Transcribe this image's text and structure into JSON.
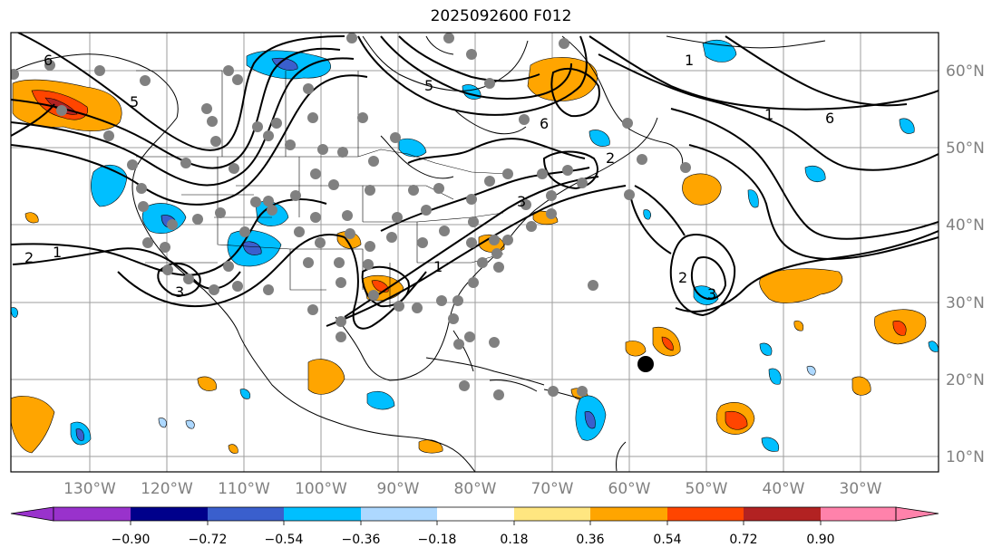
{
  "title": "2025092600 F012",
  "map": {
    "lat_labels": [
      "60°N",
      "50°N",
      "40°N",
      "30°N",
      "20°N",
      "10°N"
    ],
    "lon_labels": [
      "130°W",
      "120°W",
      "110°W",
      "100°W",
      "90°W",
      "80°W",
      "70°W",
      "60°W",
      "50°W",
      "40°W",
      "30°W"
    ],
    "contour_labels": [
      "6",
      "5",
      "6",
      "1",
      "6",
      "1",
      "2",
      "1",
      "3",
      "2",
      "3",
      "5",
      "3",
      "2",
      "1"
    ],
    "colors": {
      "contour": "#000000",
      "coast": "#000000",
      "grid": "#9e9e9e",
      "station": "#808080"
    }
  },
  "colorbar": {
    "ticks": [
      "−0.90",
      "−0.72",
      "−0.54",
      "−0.36",
      "−0.18",
      "0.18",
      "0.36",
      "0.54",
      "0.72",
      "0.90"
    ],
    "colors": [
      "#9932cc",
      "#00008b",
      "#3a5fcd",
      "#00bfff",
      "#add8ff",
      "#ffffff",
      "#ffe680",
      "#ffa500",
      "#ff4500",
      "#b22222",
      "#ff82ab"
    ]
  }
}
